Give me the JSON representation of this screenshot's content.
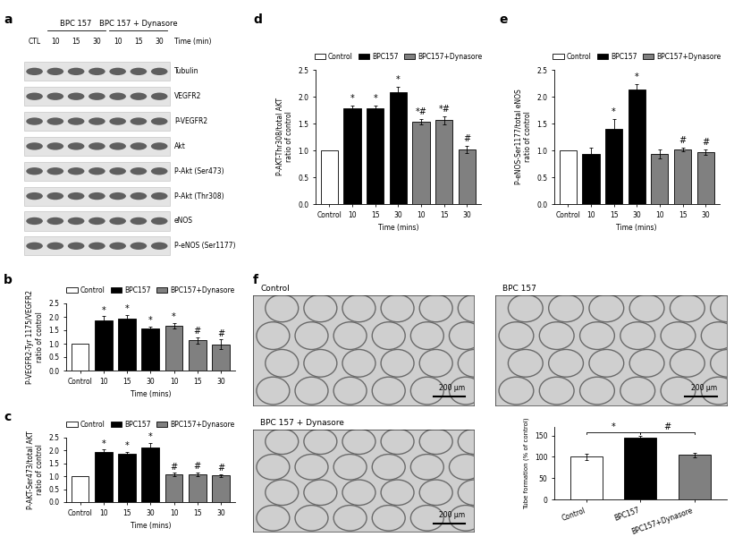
{
  "panel_labels": [
    "a",
    "b",
    "c",
    "d",
    "e",
    "f"
  ],
  "blot": {
    "groups": [
      "BPC 157",
      "BPC 157 + Dynasore"
    ],
    "time_label": "Time (min)",
    "lanes": [
      "CTL",
      "10",
      "15",
      "30",
      "10",
      "15",
      "30"
    ],
    "rows": [
      "Tubulin",
      "VEGFR2",
      "P-VEGFR2",
      "Akt",
      "P-Akt (Ser473)",
      "P-Akt (Thr308)",
      "eNOS",
      "P-eNOS (Ser1177)"
    ]
  },
  "micrographs": {
    "titles": [
      "Control",
      "BPC 157",
      "BPC 157 + Dynasore"
    ],
    "scale_bar": "200 µm"
  },
  "chart_data": [
    {
      "type": "bar",
      "panel": "b",
      "categories": [
        "Control",
        "10",
        "15",
        "30",
        "10",
        "15",
        "30"
      ],
      "xlabel": "Time (mins)",
      "ylabel": "P-VEGFR2-Tyr 1175/VEGFR2\nratio of control",
      "ylim": [
        0,
        2.5
      ],
      "yticks": [
        {
          "value": 0,
          "label": "0.0"
        },
        {
          "value": 0.5,
          "label": "0.5"
        },
        {
          "value": 1,
          "label": "1.0"
        },
        {
          "value": 1.5,
          "label": "1.5"
        },
        {
          "value": 2,
          "label": "2.0"
        },
        {
          "value": 2.5,
          "label": "2.5"
        }
      ],
      "legend": "upper center",
      "series": [
        {
          "name": "Control",
          "color": "#ffffff",
          "values": [
            1.0,
            null,
            null,
            null,
            null,
            null,
            null
          ],
          "errors": [
            null,
            null,
            null,
            null,
            null,
            null,
            null
          ],
          "marks": [
            null,
            null,
            null,
            null,
            null,
            null,
            null
          ]
        },
        {
          "name": "BPC157",
          "color": "#000000",
          "values": [
            null,
            1.88,
            1.95,
            1.58,
            null,
            null,
            null
          ],
          "errors": [
            null,
            0.15,
            0.13,
            0.07,
            null,
            null,
            null
          ],
          "marks": [
            null,
            "*",
            "*",
            "*",
            null,
            null,
            null
          ]
        },
        {
          "name": "BPC157+Dynasore",
          "color": "#808080",
          "values": [
            null,
            null,
            null,
            null,
            1.68,
            1.13,
            0.98
          ],
          "errors": [
            null,
            null,
            null,
            null,
            0.1,
            0.12,
            0.18
          ],
          "marks": [
            null,
            null,
            null,
            null,
            "*",
            "#",
            "#"
          ]
        }
      ]
    },
    {
      "type": "bar",
      "panel": "c",
      "categories": [
        "Control",
        "10",
        "15",
        "30",
        "10",
        "15",
        "30"
      ],
      "xlabel": "Time (mins)",
      "ylabel": "P-AKT-Ser473/total AKT\nratio of control",
      "ylim": [
        0,
        2.5
      ],
      "yticks": [
        {
          "value": 0,
          "label": "0.0"
        },
        {
          "value": 0.5,
          "label": "0.5"
        },
        {
          "value": 1,
          "label": "1.0"
        },
        {
          "value": 1.5,
          "label": "1.5"
        },
        {
          "value": 2,
          "label": "2.0"
        },
        {
          "value": 2.5,
          "label": "2.5"
        }
      ],
      "legend": "upper center",
      "series": [
        {
          "name": "Control",
          "color": "#ffffff",
          "values": [
            1.0,
            null,
            null,
            null,
            null,
            null,
            null
          ],
          "errors": [
            null,
            null,
            null,
            null,
            null,
            null,
            null
          ],
          "marks": [
            null,
            null,
            null,
            null,
            null,
            null,
            null
          ]
        },
        {
          "name": "BPC157",
          "color": "#000000",
          "values": [
            null,
            1.95,
            1.88,
            2.13,
            null,
            null,
            null
          ],
          "errors": [
            null,
            0.1,
            0.08,
            0.17,
            null,
            null,
            null
          ],
          "marks": [
            null,
            "*",
            "*",
            "*",
            null,
            null,
            null
          ]
        },
        {
          "name": "BPC157+Dynasore",
          "color": "#808080",
          "values": [
            null,
            null,
            null,
            null,
            1.08,
            1.07,
            1.03
          ],
          "errors": [
            null,
            null,
            null,
            null,
            0.06,
            0.08,
            0.06
          ],
          "marks": [
            null,
            null,
            null,
            null,
            "#",
            "#",
            "#"
          ]
        }
      ]
    },
    {
      "type": "bar",
      "panel": "d",
      "categories": [
        "Control",
        "10",
        "15",
        "30",
        "10",
        "15",
        "30"
      ],
      "xlabel": "Time (mins)",
      "ylabel": "P-AKT-Thr308/total AKT\nratio of control",
      "ylim": [
        0,
        2.5
      ],
      "yticks": [
        {
          "value": 0,
          "label": "0.0"
        },
        {
          "value": 0.5,
          "label": "0.5"
        },
        {
          "value": 1,
          "label": "1.0"
        },
        {
          "value": 1.5,
          "label": "1.5"
        },
        {
          "value": 2,
          "label": "2.0"
        },
        {
          "value": 2.5,
          "label": "2.5"
        }
      ],
      "legend": "upper center",
      "series": [
        {
          "name": "Control",
          "color": "#ffffff",
          "values": [
            1.0,
            null,
            null,
            null,
            null,
            null,
            null
          ],
          "errors": [
            null,
            null,
            null,
            null,
            null,
            null,
            null
          ],
          "marks": [
            null,
            null,
            null,
            null,
            null,
            null,
            null
          ]
        },
        {
          "name": "BPC157",
          "color": "#000000",
          "values": [
            null,
            1.78,
            1.78,
            2.08,
            null,
            null,
            null
          ],
          "errors": [
            null,
            0.06,
            0.05,
            0.1,
            null,
            null,
            null
          ],
          "marks": [
            null,
            "*",
            "*",
            "*",
            null,
            null,
            null
          ]
        },
        {
          "name": "BPC157+Dynasore",
          "color": "#808080",
          "values": [
            null,
            null,
            null,
            null,
            1.53,
            1.56,
            1.02
          ],
          "errors": [
            null,
            null,
            null,
            null,
            0.05,
            0.08,
            0.07
          ],
          "marks": [
            null,
            null,
            null,
            null,
            "*#",
            "*#",
            "#"
          ]
        }
      ]
    },
    {
      "type": "bar",
      "panel": "e",
      "categories": [
        "Control",
        "10",
        "15",
        "30",
        "10",
        "15",
        "30"
      ],
      "xlabel": "Time (mins)",
      "ylabel": "P-eNOS-Ser1177/total eNOS\nratio of control",
      "ylim": [
        0,
        2.5
      ],
      "yticks": [
        {
          "value": 0,
          "label": "0.0"
        },
        {
          "value": 0.5,
          "label": "0.5"
        },
        {
          "value": 1,
          "label": "1.0"
        },
        {
          "value": 1.5,
          "label": "1.5"
        },
        {
          "value": 2,
          "label": "2.0"
        },
        {
          "value": 2.5,
          "label": "2.5"
        }
      ],
      "legend": "upper center",
      "series": [
        {
          "name": "Control",
          "color": "#ffffff",
          "values": [
            1.0,
            null,
            null,
            null,
            null,
            null,
            null
          ],
          "errors": [
            null,
            null,
            null,
            null,
            null,
            null,
            null
          ],
          "marks": [
            null,
            null,
            null,
            null,
            null,
            null,
            null
          ]
        },
        {
          "name": "BPC157",
          "color": "#000000",
          "values": [
            null,
            0.93,
            1.4,
            2.13,
            null,
            null,
            null
          ],
          "errors": [
            null,
            0.12,
            0.18,
            0.1,
            null,
            null,
            null
          ],
          "marks": [
            null,
            null,
            "*",
            "*",
            null,
            null,
            null
          ]
        },
        {
          "name": "BPC157+Dynasore",
          "color": "#808080",
          "values": [
            null,
            null,
            null,
            null,
            0.93,
            1.02,
            0.97
          ],
          "errors": [
            null,
            null,
            null,
            null,
            0.08,
            0.03,
            0.05
          ],
          "marks": [
            null,
            null,
            null,
            null,
            null,
            "#",
            "#"
          ]
        }
      ]
    },
    {
      "type": "bar",
      "panel": "f",
      "categories": [
        "Control",
        "BPC157",
        "BPC157+Dynasore"
      ],
      "values": [
        100,
        144,
        104
      ],
      "errors": [
        7,
        4,
        6
      ],
      "colors": [
        "#ffffff",
        "#000000",
        "#808080"
      ],
      "ylabel": "Tube formation (% of control)",
      "ylim": [
        0,
        170
      ],
      "yticks": [
        0,
        50,
        100,
        150
      ],
      "comparisons": [
        {
          "from": "Control",
          "to": "BPC157",
          "label": "*"
        },
        {
          "from": "BPC157",
          "to": "BPC157+Dynasore",
          "label": "#"
        }
      ]
    }
  ]
}
